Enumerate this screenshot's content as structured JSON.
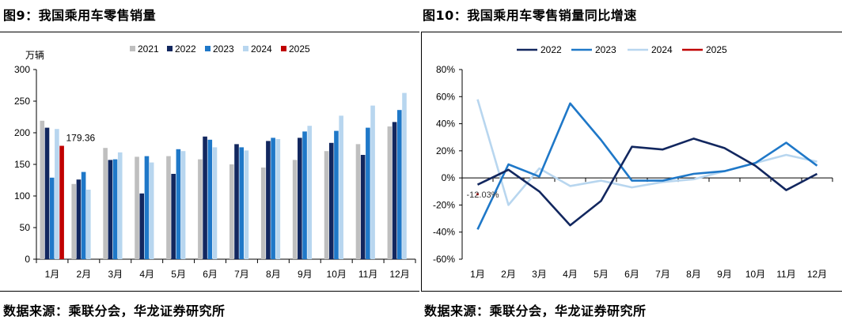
{
  "left_title": "图9：我国乘用车零售销量",
  "right_title": "图10：我国乘用车零售销量同比增速",
  "left_source": "数据来源：乘联分会，华龙证券研究所",
  "right_source": "数据来源：乘联分会，华龙证券研究所",
  "chart_data": [
    {
      "type": "bar",
      "title": "我国乘用车零售销量",
      "ylabel": "万辆",
      "ylim": [
        0,
        300
      ],
      "yticks": [
        "0",
        "50",
        "100",
        "150",
        "200",
        "250",
        "300"
      ],
      "categories": [
        "1月",
        "2月",
        "3月",
        "4月",
        "5月",
        "6月",
        "7月",
        "8月",
        "9月",
        "10月",
        "11月",
        "12月"
      ],
      "annotation": "179.36",
      "series": [
        {
          "name": "2021",
          "color": "#bfbfbf",
          "values": [
            219,
            119,
            176,
            162,
            163,
            158,
            150,
            145,
            157,
            171,
            182,
            210
          ]
        },
        {
          "name": "2022",
          "color": "#12275f",
          "values": [
            208,
            126,
            157,
            104,
            135,
            194,
            182,
            187,
            192,
            184,
            165,
            217
          ]
        },
        {
          "name": "2023",
          "color": "#1f78c8",
          "values": [
            129,
            138,
            158,
            163,
            174,
            189,
            177,
            192,
            202,
            203,
            208,
            236
          ]
        },
        {
          "name": "2024",
          "color": "#b8d6ef",
          "values": [
            206,
            110,
            169,
            153,
            171,
            177,
            172,
            190,
            211,
            227,
            243,
            263
          ]
        },
        {
          "name": "2025",
          "color": "#c00000",
          "values": [
            179.36,
            null,
            null,
            null,
            null,
            null,
            null,
            null,
            null,
            null,
            null,
            null
          ]
        }
      ]
    },
    {
      "type": "line",
      "title": "我国乘用车零售销量同比增速",
      "ylim": [
        -60,
        80
      ],
      "yticks": [
        "-60%",
        "-40%",
        "-20%",
        "0%",
        "20%",
        "40%",
        "60%",
        "80%"
      ],
      "categories": [
        "1月",
        "2月",
        "3月",
        "4月",
        "5月",
        "6月",
        "7月",
        "8月",
        "9月",
        "10月",
        "11月",
        "12月"
      ],
      "annotation": "-12.03%",
      "series": [
        {
          "name": "2022",
          "color": "#12275f",
          "values": [
            -5,
            6,
            -10,
            -35,
            -17,
            23,
            21,
            29,
            22,
            9,
            -9,
            3
          ]
        },
        {
          "name": "2023",
          "color": "#1f78c8",
          "values": [
            -38,
            10,
            1,
            55,
            28,
            -2,
            -2,
            3,
            5,
            11,
            26,
            9
          ]
        },
        {
          "name": "2024",
          "color": "#b8d6ef",
          "values": [
            58,
            -20,
            7,
            -6,
            -2,
            -7,
            -3,
            -1,
            5,
            11,
            17,
            12
          ]
        },
        {
          "name": "2025",
          "color": "#c00000",
          "values": [
            -12.03,
            null,
            null,
            null,
            null,
            null,
            null,
            null,
            null,
            null,
            null,
            null
          ]
        }
      ]
    }
  ]
}
